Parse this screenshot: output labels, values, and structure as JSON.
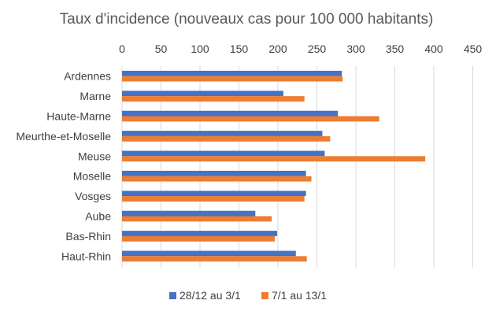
{
  "chart_data": {
    "type": "bar",
    "orientation": "horizontal",
    "title": "Taux d'incidence (nouveaux cas pour 100 000 habitants)",
    "xlim": [
      0,
      450
    ],
    "x_ticks": [
      0,
      50,
      100,
      150,
      200,
      250,
      300,
      350,
      400,
      450
    ],
    "x_tick_labels": [
      "0",
      "50",
      "100",
      "150",
      "200",
      "250",
      "300",
      "350",
      "400",
      "450"
    ],
    "x_axis_position": "top",
    "grid": true,
    "legend_position": "bottom",
    "categories": [
      "Ardennes",
      "Marne",
      "Haute-Marne",
      "Meurthe-et-Moselle",
      "Meuse",
      "Moselle",
      "Vosges",
      "Aube",
      "Bas-Rhin",
      "Haut-Rhin"
    ],
    "series": [
      {
        "name": "28/12 au 3/1",
        "color": "#4472C4",
        "values": [
          282,
          207,
          277,
          257,
          260,
          236,
          236,
          171,
          199,
          223
        ]
      },
      {
        "name": "7/1 au 13/1",
        "color": "#ED7D31",
        "values": [
          283,
          234,
          330,
          267,
          389,
          243,
          234,
          192,
          196,
          237
        ]
      }
    ]
  }
}
